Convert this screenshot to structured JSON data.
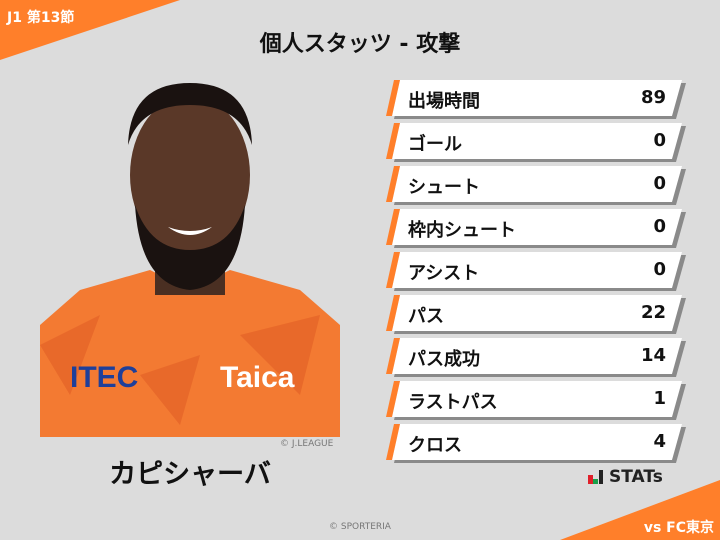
{
  "header": {
    "round": "J1 第13節",
    "title": "個人スタッツ - 攻撃",
    "accent": "#ff7f2a"
  },
  "player": {
    "name": "カピシャーバ",
    "photo_credit": "© J.LEAGUE",
    "jersey_sponsors": [
      "ITEC",
      "Taica"
    ]
  },
  "stats": [
    {
      "label": "出場時間",
      "value": "89"
    },
    {
      "label": "ゴール",
      "value": "0"
    },
    {
      "label": "シュート",
      "value": "0"
    },
    {
      "label": "枠内シュート",
      "value": "0"
    },
    {
      "label": "アシスト",
      "value": "0"
    },
    {
      "label": "パス",
      "value": "22"
    },
    {
      "label": "パス成功",
      "value": "14"
    },
    {
      "label": "ラストパス",
      "value": "1"
    },
    {
      "label": "クロス",
      "value": "4"
    }
  ],
  "footer": {
    "logo": "STATs",
    "opponent": "vs FC東京",
    "copyright": "© SPORTERIA"
  }
}
